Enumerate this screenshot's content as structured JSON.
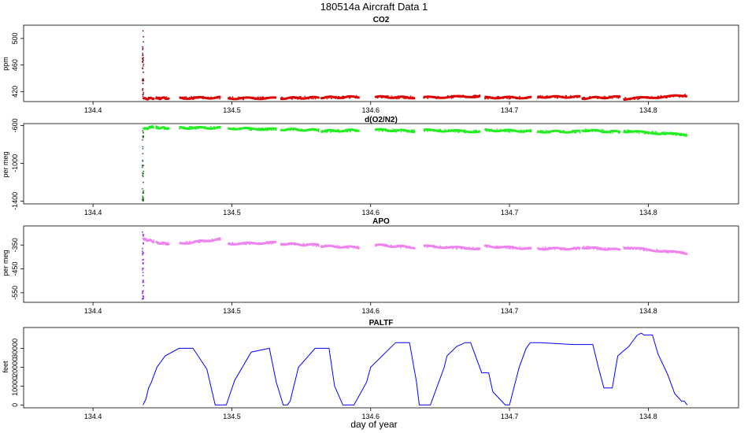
{
  "figure": {
    "title": "180514a    Aircraft Data 1",
    "xlabel": "day of year"
  },
  "chart_data": [
    {
      "type": "scatter",
      "title": "CO2",
      "ylabel": "ppm",
      "xlim": [
        134.35,
        134.865
      ],
      "ylim": [
        405,
        520
      ],
      "x_ticks": [
        134.4,
        134.5,
        134.6,
        134.7,
        134.8
      ],
      "y_ticks": [
        420,
        460,
        500
      ],
      "grid": false,
      "colors": {
        "main": "#dd0000",
        "spike": "#7a1010"
      },
      "spike": {
        "x": 134.436,
        "y_range": [
          410,
          516
        ]
      },
      "segments": [
        {
          "x": [
            134.436,
            134.444
          ],
          "y": [
            409,
            410
          ]
        },
        {
          "x": [
            134.445,
            134.455
          ],
          "y": [
            410,
            410
          ]
        },
        {
          "x": [
            134.462,
            134.492
          ],
          "y": [
            410,
            411
          ]
        },
        {
          "x": [
            134.497,
            134.532
          ],
          "y": [
            410,
            410
          ]
        },
        {
          "x": [
            134.535,
            134.563
          ],
          "y": [
            410,
            411
          ]
        },
        {
          "x": [
            134.564,
            134.592
          ],
          "y": [
            411,
            412
          ]
        },
        {
          "x": [
            134.603,
            134.632
          ],
          "y": [
            412,
            411
          ]
        },
        {
          "x": [
            134.638,
            134.679
          ],
          "y": [
            411,
            413
          ]
        },
        {
          "x": [
            134.682,
            134.716
          ],
          "y": [
            411,
            411
          ]
        },
        {
          "x": [
            134.72,
            134.751
          ],
          "y": [
            412,
            412
          ]
        },
        {
          "x": [
            134.752,
            134.78
          ],
          "y": [
            410,
            412
          ]
        },
        {
          "x": [
            134.782,
            134.828
          ],
          "y": [
            409,
            414
          ]
        }
      ]
    },
    {
      "type": "scatter",
      "title": "d(O2/N2)",
      "ylabel": "per meg",
      "xlim": [
        134.35,
        134.865
      ],
      "ylim": [
        -1430,
        -580
      ],
      "x_ticks": [
        134.4,
        134.5,
        134.6,
        134.7,
        134.8
      ],
      "y_ticks": [
        -600,
        -1000,
        -1400
      ],
      "grid": false,
      "colors": {
        "main": "#22ee22",
        "spike": "#1d6b1d"
      },
      "spike": {
        "x": 134.436,
        "y_range": [
          -1400,
          -610
        ]
      },
      "segments": [
        {
          "x": [
            134.436,
            134.444
          ],
          "y": [
            -640,
            -610
          ]
        },
        {
          "x": [
            134.445,
            134.455
          ],
          "y": [
            -620,
            -630
          ]
        },
        {
          "x": [
            134.462,
            134.492
          ],
          "y": [
            -625,
            -625
          ]
        },
        {
          "x": [
            134.497,
            134.532
          ],
          "y": [
            -630,
            -640
          ]
        },
        {
          "x": [
            134.535,
            134.563
          ],
          "y": [
            -640,
            -650
          ]
        },
        {
          "x": [
            134.564,
            134.592
          ],
          "y": [
            -660,
            -650
          ]
        },
        {
          "x": [
            134.603,
            134.632
          ],
          "y": [
            -645,
            -660
          ]
        },
        {
          "x": [
            134.638,
            134.679
          ],
          "y": [
            -650,
            -665
          ]
        },
        {
          "x": [
            134.682,
            134.716
          ],
          "y": [
            -650,
            -660
          ]
        },
        {
          "x": [
            134.72,
            134.751
          ],
          "y": [
            -665,
            -665
          ]
        },
        {
          "x": [
            134.752,
            134.78
          ],
          "y": [
            -650,
            -670
          ]
        },
        {
          "x": [
            134.782,
            134.828
          ],
          "y": [
            -660,
            -700
          ]
        }
      ]
    },
    {
      "type": "scatter",
      "title": "APO",
      "ylabel": "per meg",
      "xlim": [
        134.35,
        134.865
      ],
      "ylim": [
        -590,
        -270
      ],
      "x_ticks": [
        134.4,
        134.5,
        134.6,
        134.7,
        134.8
      ],
      "y_ticks": [
        -350,
        -450,
        -550
      ],
      "grid": false,
      "colors": {
        "main": "#ee82ee",
        "spike": "#8a2be2"
      },
      "spike": {
        "x": 134.436,
        "y_range": [
          -580,
          -290
        ]
      },
      "segments": [
        {
          "x": [
            134.436,
            134.444
          ],
          "y": [
            -325,
            -335
          ]
        },
        {
          "x": [
            134.445,
            134.455
          ],
          "y": [
            -340,
            -345
          ]
        },
        {
          "x": [
            134.462,
            134.492
          ],
          "y": [
            -345,
            -325
          ]
        },
        {
          "x": [
            134.497,
            134.532
          ],
          "y": [
            -345,
            -340
          ]
        },
        {
          "x": [
            134.535,
            134.563
          ],
          "y": [
            -345,
            -350
          ]
        },
        {
          "x": [
            134.564,
            134.592
          ],
          "y": [
            -355,
            -360
          ]
        },
        {
          "x": [
            134.603,
            134.632
          ],
          "y": [
            -350,
            -360
          ]
        },
        {
          "x": [
            134.638,
            134.679
          ],
          "y": [
            -355,
            -365
          ]
        },
        {
          "x": [
            134.682,
            134.716
          ],
          "y": [
            -355,
            -365
          ]
        },
        {
          "x": [
            134.72,
            134.751
          ],
          "y": [
            -365,
            -365
          ]
        },
        {
          "x": [
            134.752,
            134.78
          ],
          "y": [
            -360,
            -370
          ]
        },
        {
          "x": [
            134.782,
            134.828
          ],
          "y": [
            -360,
            -385
          ]
        }
      ]
    },
    {
      "type": "line",
      "title": "PALTF",
      "ylabel": "feet",
      "xlim": [
        134.35,
        134.865
      ],
      "ylim": [
        -1500,
        41000
      ],
      "x_ticks": [
        134.4,
        134.5,
        134.6,
        134.7,
        134.8
      ],
      "y_ticks": [
        0,
        10000,
        20000,
        30000
      ],
      "grid": false,
      "colors": {
        "main": "#0000ff"
      },
      "x": [
        134.436,
        134.438,
        134.44,
        134.442,
        134.446,
        134.452,
        134.462,
        134.472,
        134.482,
        134.488,
        134.496,
        134.502,
        134.514,
        134.527,
        134.532,
        134.537,
        134.54,
        134.542,
        134.548,
        134.56,
        134.57,
        134.574,
        134.58,
        134.588,
        134.597,
        134.6,
        134.618,
        134.622,
        134.628,
        134.633,
        134.635,
        134.643,
        134.653,
        134.655,
        134.662,
        134.668,
        134.672,
        134.68,
        134.685,
        134.688,
        134.697,
        134.7,
        134.707,
        134.712,
        134.715,
        134.717,
        134.722,
        134.746,
        134.753,
        134.76,
        134.764,
        134.768,
        134.774,
        134.778,
        134.786,
        134.792,
        134.795,
        134.797,
        134.803,
        134.807,
        134.814,
        134.819,
        134.824,
        134.826,
        134.828
      ],
      "y": [
        0,
        3000,
        9000,
        12000,
        20000,
        26000,
        30000,
        30000,
        19000,
        0,
        0,
        13000,
        28000,
        30000,
        12000,
        0,
        0,
        2000,
        20000,
        30000,
        30000,
        10000,
        0,
        0,
        12000,
        20000,
        33000,
        33000,
        33000,
        12000,
        0,
        0,
        20000,
        26000,
        31000,
        33000,
        33000,
        17000,
        17000,
        7000,
        0,
        0,
        20000,
        30000,
        33000,
        33000,
        33000,
        32000,
        32000,
        32000,
        20000,
        9000,
        9000,
        26000,
        31000,
        37000,
        38000,
        37000,
        37000,
        27000,
        16000,
        6000,
        2000,
        2000,
        0
      ]
    }
  ]
}
